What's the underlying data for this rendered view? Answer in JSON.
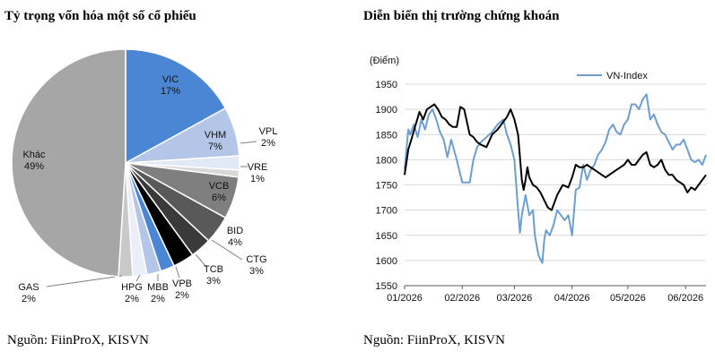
{
  "left_title": "Tỷ trọng vốn hóa một số cổ phiếu",
  "right_title": "Diễn biến thị trường chứng khoán",
  "left_source": "Nguồn: FiinProX, KISVN",
  "right_source": "Nguồn: FiinProX, KISVN",
  "chart_data": [
    {
      "type": "pie",
      "title": "Tỷ trọng vốn hóa một số cổ phiếu",
      "slices": [
        {
          "label": "VIC",
          "pct_label": "17%",
          "value": 17,
          "color": "#4a86d4"
        },
        {
          "label": "VHM",
          "pct_label": "7%",
          "value": 7,
          "color": "#b4c6e8"
        },
        {
          "label": "VPL",
          "pct_label": "2%",
          "value": 2,
          "color": "#e2e9f6"
        },
        {
          "label": "VRE",
          "pct_label": "1%",
          "value": 1,
          "color": "#d8d8d8"
        },
        {
          "label": "VCB",
          "pct_label": "6%",
          "value": 6,
          "color": "#7f7f7f"
        },
        {
          "label": "BID",
          "pct_label": "4%",
          "value": 4,
          "color": "#595959"
        },
        {
          "label": "CTG",
          "pct_label": "3%",
          "value": 3,
          "color": "#3a3a3a"
        },
        {
          "label": "TCB",
          "pct_label": "3%",
          "value": 3,
          "color": "#000000"
        },
        {
          "label": "VPB",
          "pct_label": "2%",
          "value": 2,
          "color": "#4a86d4"
        },
        {
          "label": "MBB",
          "pct_label": "2%",
          "value": 2,
          "color": "#b4c6e8"
        },
        {
          "label": "HPG",
          "pct_label": "2%",
          "value": 2,
          "color": "#e9eef8"
        },
        {
          "label": "GAS",
          "pct_label": "2%",
          "value": 2,
          "color": "#c9c9c9"
        },
        {
          "label": "Khác",
          "pct_label": "49%",
          "value": 49,
          "color": "#a6a6a6"
        }
      ]
    },
    {
      "type": "line",
      "title": "Diễn biến thị trường chứng khoán",
      "ylabel": "(Điểm)",
      "ylim": [
        1550,
        1950
      ],
      "yticks": [
        "1950",
        "1900",
        "1850",
        "1800",
        "1750",
        "1700",
        "1650",
        "1600",
        "1550"
      ],
      "xticks": [
        "01/2026",
        "02/2026",
        "03/2026",
        "04/2026",
        "05/2026",
        "06/2026"
      ],
      "xtick_t": [
        0,
        31,
        59,
        90,
        120,
        151
      ],
      "legend": "top-center",
      "series": [
        {
          "name": "VN-Index",
          "color": "#6c9fd0",
          "x": [
            0,
            2,
            3,
            5,
            7,
            9,
            11,
            13,
            15,
            17,
            19,
            21,
            23,
            25,
            28,
            31,
            33,
            35,
            37,
            39,
            41,
            44,
            47,
            50,
            53,
            55,
            57,
            59,
            61,
            62,
            63,
            65,
            66,
            67,
            69,
            70,
            72,
            74,
            75,
            76,
            78,
            80,
            82,
            84,
            86,
            88,
            90,
            92,
            94,
            96,
            98,
            100,
            102,
            104,
            106,
            108,
            110,
            112,
            114,
            116,
            118,
            120,
            122,
            124,
            126,
            128,
            130,
            132,
            134,
            136,
            138,
            140,
            142,
            144,
            146,
            148,
            150,
            152,
            154,
            156,
            158,
            160,
            162
          ],
          "values": [
            1780,
            1860,
            1850,
            1870,
            1845,
            1880,
            1860,
            1890,
            1900,
            1880,
            1855,
            1840,
            1805,
            1840,
            1800,
            1755,
            1755,
            1755,
            1800,
            1825,
            1835,
            1845,
            1855,
            1870,
            1880,
            1850,
            1830,
            1800,
            1700,
            1655,
            1690,
            1730,
            1710,
            1690,
            1700,
            1650,
            1610,
            1595,
            1640,
            1660,
            1650,
            1670,
            1700,
            1690,
            1680,
            1690,
            1650,
            1740,
            1745,
            1790,
            1760,
            1780,
            1790,
            1810,
            1820,
            1835,
            1860,
            1870,
            1855,
            1850,
            1870,
            1880,
            1910,
            1910,
            1900,
            1920,
            1930,
            1880,
            1890,
            1870,
            1855,
            1850,
            1835,
            1820,
            1830,
            1830,
            1840,
            1820,
            1800,
            1795,
            1800,
            1790,
            1810
          ]
        },
        {
          "name": "",
          "color": "#000000",
          "x": [
            0,
            2,
            4,
            6,
            8,
            10,
            12,
            14,
            16,
            18,
            20,
            22,
            24,
            26,
            28,
            30,
            32,
            35,
            37,
            39,
            41,
            44,
            47,
            50,
            53,
            55,
            57,
            59,
            61,
            63,
            64,
            65,
            66,
            67,
            69,
            71,
            73,
            75,
            77,
            79,
            82,
            85,
            88,
            90,
            92,
            94,
            96,
            98,
            100,
            102,
            104,
            106,
            108,
            110,
            112,
            114,
            116,
            118,
            120,
            122,
            124,
            126,
            128,
            130,
            132,
            134,
            136,
            138,
            140,
            142,
            144,
            146,
            148,
            150,
            152,
            154,
            156,
            158,
            160,
            162
          ],
          "values": [
            1770,
            1820,
            1845,
            1870,
            1895,
            1880,
            1900,
            1905,
            1910,
            1900,
            1885,
            1880,
            1870,
            1865,
            1865,
            1905,
            1900,
            1850,
            1845,
            1835,
            1830,
            1825,
            1850,
            1860,
            1875,
            1885,
            1900,
            1880,
            1850,
            1760,
            1740,
            1760,
            1785,
            1765,
            1750,
            1745,
            1735,
            1720,
            1705,
            1700,
            1730,
            1750,
            1745,
            1765,
            1790,
            1785,
            1785,
            1790,
            1785,
            1780,
            1775,
            1770,
            1765,
            1770,
            1775,
            1780,
            1785,
            1790,
            1800,
            1790,
            1790,
            1800,
            1810,
            1815,
            1790,
            1785,
            1790,
            1800,
            1780,
            1770,
            1770,
            1760,
            1755,
            1750,
            1735,
            1745,
            1740,
            1750,
            1760,
            1770
          ]
        }
      ]
    }
  ]
}
